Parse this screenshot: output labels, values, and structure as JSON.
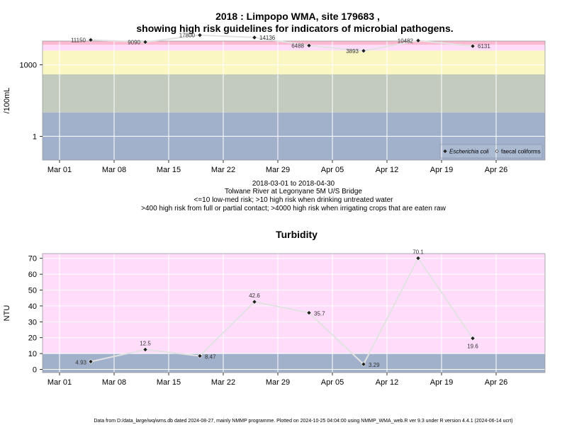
{
  "title_line1": "2018 : Limpopo WMA, site 179683 ,",
  "title_line2": "showing high risk guidelines for indicators of microbial pathogens.",
  "subtitle_lines": [
    "2018-03-01 to 2018-04-30",
    "Tolwane River at Legonyane 5M U/S Bridge",
    "<=10 low-med risk; >10 high risk when drinking untreated water",
    ">400 high risk from full or partial contact; >4000 high risk when irrigating crops that are eaten raw"
  ],
  "footer": "Data from D:/data_large/wq/wms.db dated 2024-08-27, mainly NMMP programme. Plotted on 2024-10-25 04:04:00 using NMMP_WMA_web.R ver 9.3 under R version 4.4.1 (2024-06-14 ucrt)",
  "date_ticks": [
    "Mar 01",
    "Mar 08",
    "Mar 15",
    "Mar 22",
    "Mar 29",
    "Apr 05",
    "Apr 12",
    "Apr 19",
    "Apr 26"
  ],
  "colors": {
    "band_blue": "#a1b1cb",
    "band_grey": "#c3cbbf",
    "band_yellow": "#fbf7c3",
    "band_pink": "#ffdcfa",
    "band_red": "#ffb9d0",
    "line": "#e2e2e2",
    "grid": "#ffffff"
  },
  "chart_data": [
    {
      "type": "line",
      "title": "",
      "ylabel": "/100mL",
      "xlabel": "",
      "scale": "log",
      "grid": true,
      "ylim": [
        0.1,
        10000
      ],
      "yticks": [
        {
          "value": 1,
          "label": "1"
        },
        {
          "value": 1000,
          "label": "1000"
        }
      ],
      "bands": [
        {
          "from": 0.1,
          "to": 10,
          "color": "#a1b1cb"
        },
        {
          "from": 10,
          "to": 400,
          "color": "#c3cbbf"
        },
        {
          "from": 400,
          "to": 4000,
          "color": "#fbf7c3"
        },
        {
          "from": 4000,
          "to": 7000,
          "color": "#ffdcfa"
        },
        {
          "from": 7000,
          "to": 10000,
          "color": "#ffb9d0"
        }
      ],
      "legend": {
        "placement": "bottom-right",
        "items": [
          {
            "label": "Escherichia coli",
            "italic": true,
            "marker": "filled"
          },
          {
            "label": "faecal coliforms",
            "italic": false,
            "marker": "open"
          }
        ]
      },
      "series": [
        {
          "name": "Escherichia coli",
          "points": [
            {
              "x": "2018-03-05",
              "y": 11150,
              "label": "11150"
            },
            {
              "x": "2018-03-12",
              "y": 9090,
              "label": "9090"
            },
            {
              "x": "2018-03-19",
              "y": 17800,
              "label": "17800"
            },
            {
              "x": "2018-03-26",
              "y": 14136,
              "label": "14136"
            },
            {
              "x": "2018-04-02",
              "y": 6488,
              "label": "6488"
            },
            {
              "x": "2018-04-09",
              "y": 3893,
              "label": "3893"
            },
            {
              "x": "2018-04-16",
              "y": 10482,
              "label": "10482"
            },
            {
              "x": "2018-04-23",
              "y": 6131,
              "label": "6131"
            }
          ]
        }
      ]
    },
    {
      "type": "line",
      "title": "Turbidity",
      "ylabel": "NTU",
      "xlabel": "",
      "grid": true,
      "ylim": [
        -2,
        73
      ],
      "yticks": [
        {
          "value": 0,
          "label": "0"
        },
        {
          "value": 10,
          "label": "10"
        },
        {
          "value": 20,
          "label": "20"
        },
        {
          "value": 30,
          "label": "30"
        },
        {
          "value": 40,
          "label": "40"
        },
        {
          "value": 50,
          "label": "50"
        },
        {
          "value": 60,
          "label": "60"
        },
        {
          "value": 70,
          "label": "70"
        }
      ],
      "bands": [
        {
          "from": -2,
          "to": 10,
          "color": "#a1b1cb"
        },
        {
          "from": 10,
          "to": 73,
          "color": "#ffdcfa"
        }
      ],
      "series": [
        {
          "points": [
            {
              "x": "2018-03-05",
              "y": 4.93,
              "label": "4.93"
            },
            {
              "x": "2018-03-12",
              "y": 12.5,
              "label": "12.5"
            },
            {
              "x": "2018-03-19",
              "y": 8.47,
              "label": "8.47"
            },
            {
              "x": "2018-03-26",
              "y": 42.6,
              "label": "42.6"
            },
            {
              "x": "2018-04-02",
              "y": 35.7,
              "label": "35.7"
            },
            {
              "x": "2018-04-09",
              "y": 3.29,
              "label": "3.29"
            },
            {
              "x": "2018-04-16",
              "y": 70.1,
              "label": "70.1"
            },
            {
              "x": "2018-04-23",
              "y": 19.6,
              "label": "19.6"
            }
          ]
        }
      ]
    }
  ]
}
